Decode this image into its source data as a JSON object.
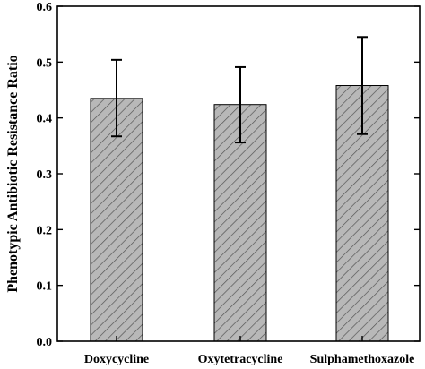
{
  "chart_data": {
    "type": "bar",
    "categories": [
      "Doxycycline",
      "Oxytetracycline",
      "Sulphamethoxazole"
    ],
    "values": [
      0.435,
      0.424,
      0.458
    ],
    "error_low": [
      0.367,
      0.356,
      0.371
    ],
    "error_high": [
      0.504,
      0.491,
      0.545
    ],
    "ylabel": "Phenotypic Antibiotic Resistance Ratio",
    "xlabel": "",
    "ylim": [
      0.0,
      0.6
    ],
    "yticks": [
      "0.0",
      "0.1",
      "0.2",
      "0.3",
      "0.4",
      "0.5",
      "0.6"
    ],
    "bar_fill": "#b8b8b8",
    "hatch_color": "#555555",
    "grid": false,
    "legend": "none"
  }
}
